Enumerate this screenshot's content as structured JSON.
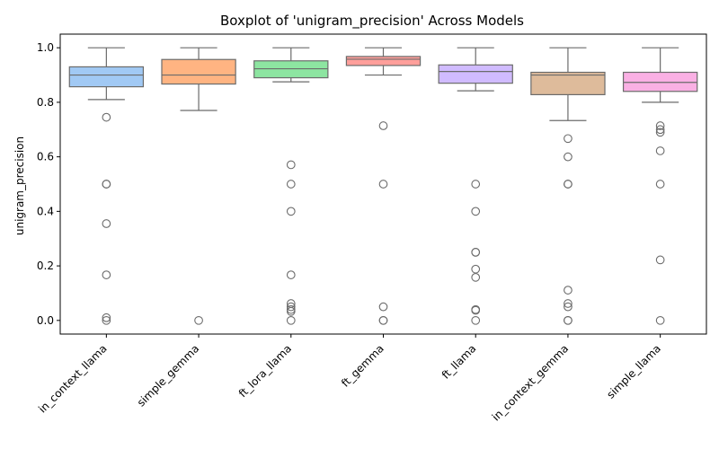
{
  "chart_data": {
    "type": "box",
    "title": "Boxplot of 'unigram_precision' Across Models",
    "xlabel": "",
    "ylabel": "unigram_precision",
    "ylim": [
      -0.05,
      1.05
    ],
    "yticks": [
      0.0,
      0.2,
      0.4,
      0.6,
      0.8,
      1.0
    ],
    "ytick_labels": [
      "0.0",
      "0.2",
      "0.4",
      "0.6",
      "0.8",
      "1.0"
    ],
    "grid": false,
    "categories": [
      "in_context_llama",
      "simple_gemma",
      "ft_lora_llama",
      "ft_gemma",
      "ft_llama",
      "in_context_gemma",
      "simple_llama"
    ],
    "colors": [
      "#a1c9f4",
      "#ffb482",
      "#8de5a1",
      "#ff9f9b",
      "#d0bbff",
      "#debb9b",
      "#fab0e4"
    ],
    "edge_color": "#6b6b6b",
    "boxes": [
      {
        "whisker_low": 0.81,
        "q1": 0.857,
        "median": 0.9,
        "q3": 0.93,
        "whisker_high": 1.0,
        "outliers": [
          0.745,
          0.5,
          0.5,
          0.355,
          0.167,
          0.01,
          0.0
        ]
      },
      {
        "whisker_low": 0.77,
        "q1": 0.867,
        "median": 0.9,
        "q3": 0.957,
        "whisker_high": 1.0,
        "outliers": [
          0.0
        ]
      },
      {
        "whisker_low": 0.875,
        "q1": 0.89,
        "median": 0.923,
        "q3": 0.952,
        "whisker_high": 1.0,
        "outliers": [
          0.571,
          0.5,
          0.4,
          0.167,
          0.062,
          0.05,
          0.04,
          0.033,
          0.0
        ]
      },
      {
        "whisker_low": 0.9,
        "q1": 0.935,
        "median": 0.958,
        "q3": 0.968,
        "whisker_high": 1.0,
        "outliers": [
          0.714,
          0.5,
          0.05,
          0.0,
          0.0
        ]
      },
      {
        "whisker_low": 0.842,
        "q1": 0.87,
        "median": 0.913,
        "q3": 0.937,
        "whisker_high": 1.0,
        "outliers": [
          0.5,
          0.4,
          0.25,
          0.25,
          0.188,
          0.158,
          0.04,
          0.037,
          0.0
        ]
      },
      {
        "whisker_low": 0.733,
        "q1": 0.828,
        "median": 0.9,
        "q3": 0.91,
        "whisker_high": 1.0,
        "outliers": [
          0.667,
          0.6,
          0.5,
          0.5,
          0.111,
          0.062,
          0.05,
          0.0,
          0.0
        ]
      },
      {
        "whisker_low": 0.8,
        "q1": 0.84,
        "median": 0.873,
        "q3": 0.91,
        "whisker_high": 1.0,
        "outliers": [
          0.714,
          0.7,
          0.69,
          0.622,
          0.5,
          0.222,
          0.0
        ]
      }
    ]
  }
}
